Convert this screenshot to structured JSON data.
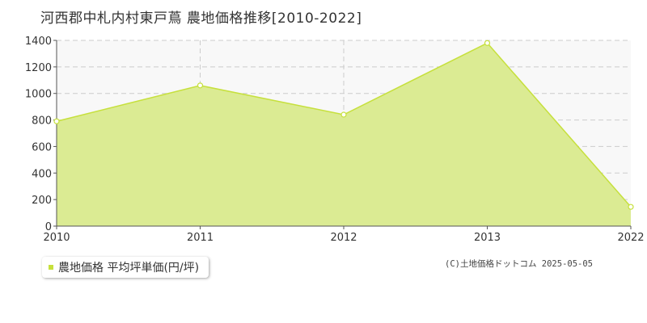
{
  "title": "河西郡中札内村東戸蔦 農地価格推移[2010-2022]",
  "legend": {
    "label": "農地価格 平均坪単価(円/坪)",
    "color": "#c6e03c"
  },
  "copyright": "(C)土地価格ドットコム 2025-05-05",
  "colors": {
    "fill": "#dbeb93",
    "line": "#c6e03c",
    "grid": "#cccccc",
    "plot_bg": "#f8f8f8",
    "axis": "#555555",
    "tick_text": "#333333"
  },
  "chart_data": {
    "type": "area",
    "title": "河西郡中札内村東戸蔦 農地価格推移[2010-2022]",
    "xlabel": "",
    "ylabel": "",
    "categories": [
      "2010",
      "2011",
      "2012",
      "2013",
      "2022"
    ],
    "series": [
      {
        "name": "農地価格 平均坪単価(円/坪)",
        "values": [
          790,
          1060,
          840,
          1380,
          145
        ]
      }
    ],
    "ylim": [
      0,
      1400
    ],
    "yticks": [
      0,
      200,
      400,
      600,
      800,
      1000,
      1200,
      1400
    ],
    "grid": true,
    "legend_position": "bottom-left"
  }
}
